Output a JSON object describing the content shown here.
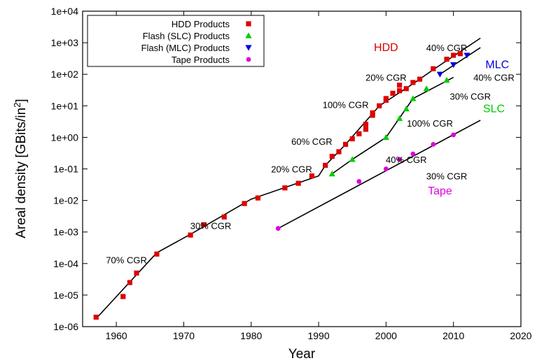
{
  "chart_data": {
    "type": "scatter",
    "title": "",
    "xlabel": "Year",
    "ylabel": "Areal density [GBits/in",
    "ylabel_sup": "2",
    "ylabel_close": "]",
    "xlim": [
      1955,
      2020
    ],
    "ylim": [
      1e-06,
      10000.0
    ],
    "yscale": "log",
    "grid": false,
    "legend_position": "top-left",
    "x_ticks": [
      1960,
      1970,
      1980,
      1990,
      2000,
      2010,
      2020
    ],
    "x_tick_labels": [
      "1960",
      "1970",
      "1980",
      "1990",
      "2000",
      "2010",
      "2020"
    ],
    "y_ticks": [
      1e-06,
      1e-05,
      0.0001,
      0.001,
      0.01,
      0.1,
      1,
      10,
      100,
      1000,
      10000
    ],
    "y_tick_labels": [
      "1e-06",
      "1e-05",
      "1e-04",
      "1e-03",
      "1e-02",
      "1e-01",
      "1e+00",
      "1e+01",
      "1e+02",
      "1e+03",
      "1e+04"
    ],
    "series": [
      {
        "name": "HDD Products",
        "marker": "square",
        "color": "#dd0000",
        "points": [
          [
            1957,
            2e-06
          ],
          [
            1961,
            9e-06
          ],
          [
            1962,
            2.5e-05
          ],
          [
            1963,
            5e-05
          ],
          [
            1966,
            0.0002
          ],
          [
            1971,
            0.0008
          ],
          [
            1973,
            0.0017
          ],
          [
            1976,
            0.003
          ],
          [
            1979,
            0.008
          ],
          [
            1981,
            0.012
          ],
          [
            1985,
            0.025
          ],
          [
            1987,
            0.035
          ],
          [
            1989,
            0.06
          ],
          [
            1991,
            0.13
          ],
          [
            1992,
            0.25
          ],
          [
            1993,
            0.35
          ],
          [
            1994,
            0.6
          ],
          [
            1995,
            0.9
          ],
          [
            1996,
            1.3
          ],
          [
            1997,
            1.8
          ],
          [
            1997,
            2.6
          ],
          [
            1998,
            5
          ],
          [
            1998,
            6
          ],
          [
            1999,
            10
          ],
          [
            2000,
            15
          ],
          [
            2000,
            17
          ],
          [
            2001,
            25
          ],
          [
            2002,
            30
          ],
          [
            2002,
            45
          ],
          [
            2003,
            35
          ],
          [
            2004,
            55
          ],
          [
            2005,
            70
          ],
          [
            2007,
            150
          ],
          [
            2009,
            300
          ],
          [
            2010,
            400
          ],
          [
            2011,
            450
          ]
        ]
      },
      {
        "name": "Flash (SLC) Products",
        "marker": "triangle-up",
        "color": "#00cc00",
        "points": [
          [
            1992,
            0.07
          ],
          [
            1995,
            0.2
          ],
          [
            2000,
            1
          ],
          [
            2002,
            4
          ],
          [
            2003,
            8
          ],
          [
            2004,
            17
          ],
          [
            2006,
            35
          ],
          [
            2009,
            65
          ]
        ]
      },
      {
        "name": "Flash (MLC) Products",
        "marker": "triangle-down",
        "color": "#0000dd",
        "points": [
          [
            2008,
            100
          ],
          [
            2010,
            200
          ],
          [
            2012,
            400
          ]
        ]
      },
      {
        "name": "Tape Products",
        "marker": "circle",
        "color": "#dd00dd",
        "points": [
          [
            1984,
            0.0013
          ],
          [
            1996,
            0.04
          ],
          [
            2000,
            0.1
          ],
          [
            2002,
            0.2
          ],
          [
            2004,
            0.3
          ],
          [
            2007,
            0.6
          ],
          [
            2010,
            1.2
          ]
        ]
      }
    ],
    "trend_lines": [
      {
        "color": "#000000",
        "points": [
          [
            1957,
            1.8e-06
          ],
          [
            1966,
            0.00022
          ],
          [
            1971,
            0.00085
          ],
          [
            1980,
            0.011
          ],
          [
            1990,
            0.06
          ],
          [
            1991,
            0.13
          ],
          [
            1994,
            0.6
          ],
          [
            1999,
            10
          ],
          [
            2004,
            50
          ],
          [
            2007,
            140
          ],
          [
            2014,
            1400
          ]
        ]
      },
      {
        "color": "#000000",
        "points": [
          [
            1992,
            0.07
          ],
          [
            1995,
            0.2
          ],
          [
            2000,
            1
          ],
          [
            2004,
            17
          ],
          [
            2010,
            80
          ]
        ]
      },
      {
        "color": "#000000",
        "points": [
          [
            2008,
            100
          ],
          [
            2014,
            700
          ]
        ]
      },
      {
        "color": "#000000",
        "points": [
          [
            1984,
            0.0013
          ],
          [
            2014,
            3.5
          ]
        ]
      }
    ],
    "annotations": [
      {
        "text": "70% CGR",
        "x": 1961.5,
        "y": 0.00013,
        "color": "#000000",
        "size": "normal"
      },
      {
        "text": "30% CGR",
        "x": 1974,
        "y": 0.0016,
        "color": "#000000",
        "size": "normal"
      },
      {
        "text": "20% CGR",
        "x": 1986,
        "y": 0.1,
        "color": "#000000",
        "size": "normal"
      },
      {
        "text": "60% CGR",
        "x": 1989,
        "y": 0.75,
        "color": "#000000",
        "size": "normal"
      },
      {
        "text": "100% CGR",
        "x": 1994,
        "y": 11,
        "color": "#000000",
        "size": "normal"
      },
      {
        "text": "20% CGR",
        "x": 2000,
        "y": 80,
        "color": "#000000",
        "size": "normal"
      },
      {
        "text": "40% CGR",
        "x": 2009,
        "y": 700,
        "color": "#000000",
        "size": "normal"
      },
      {
        "text": "40% CGR",
        "x": 2016,
        "y": 80,
        "color": "#000000",
        "size": "normal"
      },
      {
        "text": "30% CGR",
        "x": 2012.5,
        "y": 20,
        "color": "#000000",
        "size": "normal"
      },
      {
        "text": "100% CGR",
        "x": 2006.5,
        "y": 2.8,
        "color": "#000000",
        "size": "normal"
      },
      {
        "text": "40% CGR",
        "x": 2003,
        "y": 0.2,
        "color": "#000000",
        "size": "normal"
      },
      {
        "text": "30% CGR",
        "x": 2009,
        "y": 0.06,
        "color": "#000000",
        "size": "normal"
      },
      {
        "text": "HDD",
        "x": 2000,
        "y": 700,
        "color": "#dd0000",
        "size": "big"
      },
      {
        "text": "MLC",
        "x": 2016.5,
        "y": 200,
        "color": "#0000dd",
        "size": "big"
      },
      {
        "text": "SLC",
        "x": 2016,
        "y": 8,
        "color": "#00cc00",
        "size": "big"
      },
      {
        "text": "Tape",
        "x": 2008,
        "y": 0.02,
        "color": "#dd00dd",
        "size": "big"
      }
    ]
  }
}
